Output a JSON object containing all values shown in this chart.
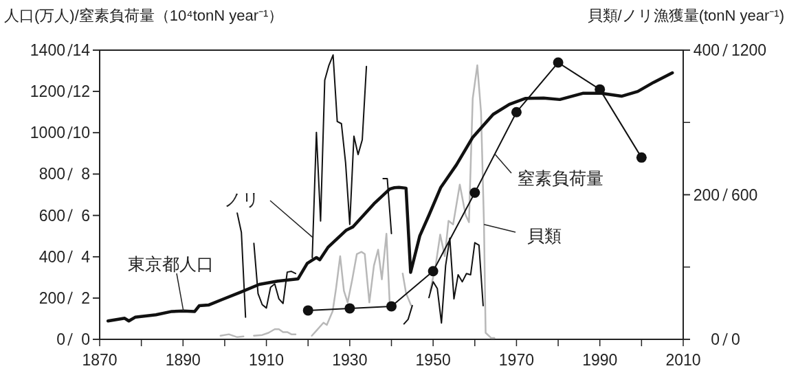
{
  "chart_data": [
    {
      "type": "line",
      "ylabel": "人口(万人)/窒素負荷量（10⁴tonN year⁻¹）",
      "y2label": "貝類/ノリ漁獲量(tonN year⁻¹)",
      "xlim": [
        1870,
        2010
      ],
      "xticks": [
        1870,
        {
          "value": 1880,
          "label": null
        },
        1890,
        {
          "value": 1900,
          "label": null
        },
        1910,
        {
          "value": 1920,
          "label": null
        },
        1930,
        {
          "value": 1940,
          "label": null
        },
        1950,
        {
          "value": 1960,
          "label": null
        },
        1970,
        {
          "value": 1980,
          "label": null
        },
        1990,
        {
          "value": 2000,
          "label": null
        },
        2010
      ],
      "ylim": [
        0,
        1400
      ],
      "yticks": [
        0,
        200,
        400,
        600,
        800,
        1000,
        1200,
        1400
      ],
      "y2lim": [
        0,
        400
      ],
      "y2ticks": [
        0,
        {
          "value": 100,
          "label": null
        },
        200,
        {
          "value": 300,
          "label": null
        },
        400
      ],
      "series": [
        {
          "name": "東京都人口",
          "color": "#111111",
          "marker": "none",
          "x": [
            1872,
            1876,
            1877,
            1878.5,
            1883.5,
            1887.3,
            1890.1,
            1892.8,
            1893.9,
            1896.1,
            1899.4,
            1903.9,
            1908.3,
            1912.7,
            1917.6,
            1919.8,
            1922,
            1922.8,
            1924.8,
            1929.2,
            1930.8,
            1935.8,
            1939.6,
            1940.7,
            1941.8,
            1943.5,
            1944.6,
            1946.8,
            1949,
            1951.8,
            1955.6,
            1959.5,
            1964.4,
            1968.3,
            1972.1,
            1976.5,
            1980.4,
            1985.9,
            1990.3,
            1995.2,
            1999.1,
            2002.9,
            2007.4
          ],
          "values": [
            89,
            102,
            89,
            107,
            119,
            135,
            137,
            135,
            163,
            166,
            193,
            229,
            266,
            282,
            293,
            368,
            396,
            385,
            446,
            529,
            545,
            656,
            728,
            734,
            736,
            732,
            324,
            501,
            601,
            734,
            845,
            978,
            1089,
            1138,
            1166,
            1168,
            1161,
            1191,
            1191,
            1177,
            1200,
            1244,
            1290
          ]
        },
        {
          "name": "貝類",
          "color": "#b8b8b8",
          "axis": "y2",
          "marker": "none",
          "x": [
            1899,
            1901,
            1903,
            1904.5,
            null,
            1907,
            1909,
            1910.5,
            1912,
            1913,
            1914,
            1915,
            1916,
            1917,
            null,
            1920.9,
            1922,
            1923.7,
            1924.5,
            1925.9,
            1926.7,
            1927.7,
            1928.6,
            1929.5,
            1930.6,
            1931.7,
            1932.8,
            1933.6,
            1934.7,
            1935.8,
            1936.8,
            1937.7,
            1938.8,
            1939.6,
            null,
            1942.7,
            1943.5,
            1944.7,
            null,
            1949.3,
            1950.6,
            1951.7,
            1952.8,
            1953.7,
            1954.8,
            1956.4,
            1957.8,
            1958.6,
            1959.5,
            1960.6,
            1961.5,
            1962.2,
            1962.6,
            1963.9,
            1964.7
          ],
          "values": [
            5,
            7,
            3,
            4,
            null,
            5,
            6,
            9,
            14,
            14,
            10,
            10,
            7,
            7,
            null,
            5,
            12,
            23,
            20,
            39,
            70,
            115,
            67,
            51,
            83,
            118,
            121,
            118,
            51,
            102,
            124,
            83,
            146,
            48,
            null,
            91,
            64,
            47,
            null,
            67,
            102,
            145,
            115,
            164,
            159,
            214,
            172,
            162,
            333,
            379,
            314,
            159,
            9,
            2,
            2
          ]
        }
      ]
    },
    {
      "type": "line",
      "xlim": [
        1870,
        2010
      ],
      "ylim": [
        0,
        14
      ],
      "yticks": [
        0,
        2,
        4,
        6,
        8,
        10,
        12,
        14
      ],
      "y2lim": [
        0,
        1200
      ],
      "y2ticks": [
        0,
        600,
        1200
      ],
      "tick_labels": "y",
      "series": [
        {
          "name": "窒素負荷量",
          "color": "#111111",
          "marker": "circle",
          "x": [
            1920,
            1930,
            1940,
            1950,
            1960,
            1970,
            1980,
            1990,
            2000
          ],
          "values": [
            1.4,
            1.5,
            1.6,
            3.3,
            7.1,
            11,
            13.4,
            12.1,
            8.8
          ]
        },
        {
          "name": "ノリ",
          "color": "#111111",
          "axis": "y2",
          "marker": "none",
          "x": [
            1903,
            1904,
            1905,
            null,
            1907,
            1908,
            1909,
            1910,
            1911,
            1912,
            1913,
            1914,
            1915,
            1916,
            1917,
            null,
            1921,
            1922,
            1923,
            1924,
            1925,
            1926,
            1927,
            1928,
            1929,
            1930,
            1931,
            1932,
            1933,
            1934,
            null,
            1938,
            1939,
            1940,
            null,
            1943,
            1944,
            1945,
            null,
            1949,
            1950,
            1951,
            1952,
            1953,
            1954,
            1955,
            1956,
            1957,
            1958,
            1959,
            1960,
            1961,
            1962
          ],
          "values": [
            524,
            444,
            92,
            null,
            398,
            190,
            144,
            130,
            216,
            230,
            168,
            149,
            279,
            282,
            273,
            null,
            339,
            859,
            491,
            1075,
            1137,
            1180,
            904,
            895,
            733,
            477,
            843,
            767,
            828,
            1132,
            null,
            667,
            667,
            439,
            null,
            64,
            83,
            140,
            null,
            173,
            239,
            211,
            68,
            306,
            420,
            168,
            268,
            239,
            273,
            268,
            401,
            391,
            140
          ]
        }
      ]
    }
  ]
}
